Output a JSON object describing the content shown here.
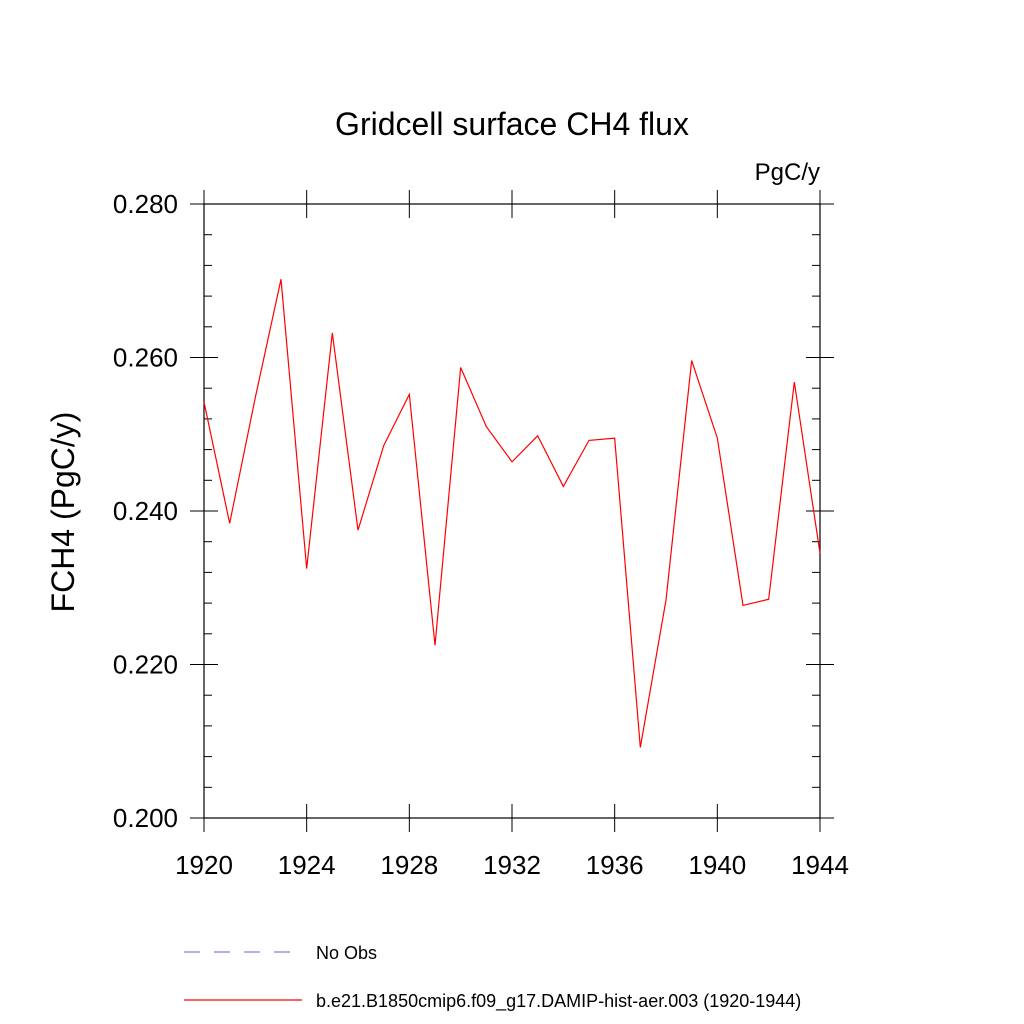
{
  "chart_data": {
    "type": "line",
    "title": "Gridcell surface CH4 flux",
    "units": "PgC/y",
    "ylabel": "FCH4  (PgC/y)",
    "xlabel": "",
    "xlim": [
      1920,
      1944
    ],
    "ylim": [
      0.2,
      0.28
    ],
    "x_ticks": [
      "1920",
      "1924",
      "1928",
      "1932",
      "1936",
      "1940",
      "1944"
    ],
    "y_ticks": [
      "0.200",
      "0.220",
      "0.240",
      "0.260",
      "0.280"
    ],
    "x": [
      1920,
      1921,
      1922,
      1923,
      1924,
      1925,
      1926,
      1927,
      1928,
      1929,
      1930,
      1931,
      1932,
      1933,
      1934,
      1935,
      1936,
      1937,
      1938,
      1939,
      1940,
      1941,
      1942,
      1943,
      1944
    ],
    "series": [
      {
        "name": "b.e21.B1850cmip6.f09_g17.DAMIP-hist-aer.003 (1920-1944)",
        "color": "#ff0000",
        "values": [
          0.2542,
          0.2384,
          0.2548,
          0.2702,
          0.2325,
          0.2632,
          0.2375,
          0.2485,
          0.2552,
          0.2225,
          0.2587,
          0.251,
          0.2464,
          0.2498,
          0.2432,
          0.2492,
          0.2495,
          0.2092,
          0.2284,
          0.2596,
          0.2495,
          0.2277,
          0.2285,
          0.2568,
          0.2345
        ]
      }
    ],
    "legend": [
      {
        "label": "No Obs",
        "color": "#8a7fd0",
        "style": "dashed"
      },
      {
        "label": "b.e21.B1850cmip6.f09_g17.DAMIP-hist-aer.003 (1920-1944)",
        "color": "#ff0000",
        "style": "solid"
      }
    ],
    "legend_position": "bottom",
    "grid": false
  }
}
